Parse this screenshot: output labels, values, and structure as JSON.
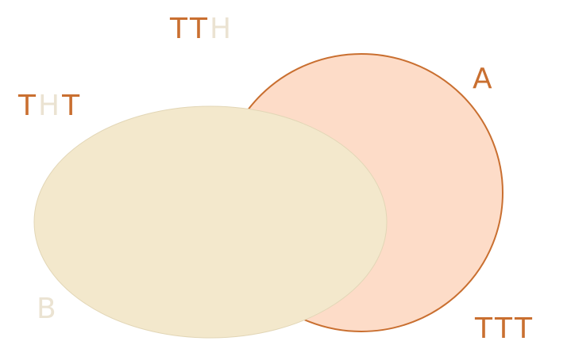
{
  "colors": {
    "background": "#ffffff",
    "set_a_fill": "#fddcc8",
    "set_a_stroke": "#c96f30",
    "set_b_fill": "#f3e8cc",
    "tails_letter": "#c96f30",
    "heads_letter": "#ebe3d2",
    "set_a_label": "#c96f30",
    "set_b_label": "#ebe3d2"
  },
  "sets": {
    "a": {
      "label": "A"
    },
    "b": {
      "label": "B"
    }
  },
  "outcomes": {
    "tth": {
      "letters": [
        "T",
        "T",
        "H"
      ]
    },
    "tht": {
      "letters": [
        "T",
        "H",
        "T"
      ]
    },
    "ttt": {
      "letters": [
        "T",
        "T",
        "T"
      ]
    }
  }
}
